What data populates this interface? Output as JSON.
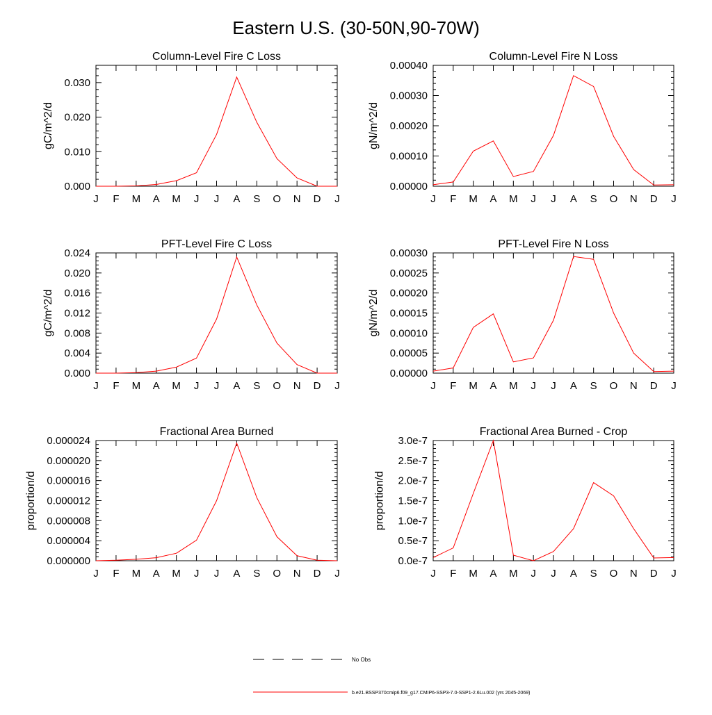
{
  "page_title": "Eastern U.S. (30-50N,90-70W)",
  "month_labels": [
    "J",
    "F",
    "M",
    "A",
    "M",
    "J",
    "J",
    "A",
    "S",
    "O",
    "N",
    "D",
    "J"
  ],
  "legend": {
    "obs_label": "No Obs",
    "obs_color": "#000000",
    "model_label": "b.e21.BSSP370cmip6.f09_g17.CMIP6-SSP3-7.0-SSP1-2.6Lu.002 (yrs 2045-2069)",
    "model_color": "#ff0000"
  },
  "chart_data": [
    {
      "type": "line",
      "title": "Column-Level Fire C Loss",
      "ylabel": "gC/m^2/d",
      "ylim": [
        0,
        0.035
      ],
      "yticks": [
        0,
        0.01,
        0.02,
        0.03
      ],
      "ytick_labels": [
        "0.000",
        "0.010",
        "0.020",
        "0.030"
      ],
      "x": [
        1,
        2,
        3,
        4,
        5,
        6,
        7,
        8,
        9,
        10,
        11,
        12,
        13
      ],
      "series": [
        {
          "color": "#ff0000",
          "values": [
            0.0,
            0.0,
            0.0001,
            0.0005,
            0.0016,
            0.0039,
            0.015,
            0.0316,
            0.0185,
            0.008,
            0.0024,
            0.0,
            0.0
          ]
        }
      ]
    },
    {
      "type": "line",
      "title": "Column-Level Fire N Loss",
      "ylabel": "gN/m^2/d",
      "ylim": [
        0,
        0.0004
      ],
      "yticks": [
        0,
        0.0001,
        0.0002,
        0.0003,
        0.0004
      ],
      "ytick_labels": [
        "0.00000",
        "0.00010",
        "0.00020",
        "0.00030",
        "0.00040"
      ],
      "x": [
        1,
        2,
        3,
        4,
        5,
        6,
        7,
        8,
        9,
        10,
        11,
        12,
        13
      ],
      "series": [
        {
          "color": "#ff0000",
          "values": [
            5e-06,
            1.4e-05,
            0.000116,
            0.00015,
            3.2e-05,
            4.9e-05,
            0.000168,
            0.000366,
            0.00033,
            0.000165,
            5.5e-05,
            4e-06,
            5e-06
          ]
        }
      ]
    },
    {
      "type": "line",
      "title": "PFT-Level Fire C Loss",
      "ylabel": "gC/m^2/d",
      "ylim": [
        0,
        0.024
      ],
      "yticks": [
        0,
        0.004,
        0.008,
        0.012,
        0.016,
        0.02,
        0.024
      ],
      "ytick_labels": [
        "0.000",
        "0.004",
        "0.008",
        "0.012",
        "0.016",
        "0.020",
        "0.024"
      ],
      "x": [
        1,
        2,
        3,
        4,
        5,
        6,
        7,
        8,
        9,
        10,
        11,
        12,
        13
      ],
      "series": [
        {
          "color": "#ff0000",
          "values": [
            0.0,
            0.0,
            0.0001,
            0.0004,
            0.0012,
            0.003,
            0.0108,
            0.0232,
            0.0136,
            0.006,
            0.0017,
            0.0,
            0.0
          ]
        }
      ]
    },
    {
      "type": "line",
      "title": "PFT-Level Fire N Loss",
      "ylabel": "gN/m^2/d",
      "ylim": [
        0,
        0.0003
      ],
      "yticks": [
        0,
        5e-05,
        0.0001,
        0.00015,
        0.0002,
        0.00025,
        0.0003
      ],
      "ytick_labels": [
        "0.00000",
        "0.00005",
        "0.00010",
        "0.00015",
        "0.00020",
        "0.00025",
        "0.00030"
      ],
      "x": [
        1,
        2,
        3,
        4,
        5,
        6,
        7,
        8,
        9,
        10,
        11,
        12,
        13
      ],
      "series": [
        {
          "color": "#ff0000",
          "values": [
            5e-06,
            1.3e-05,
            0.000114,
            0.000148,
            2.8e-05,
            3.8e-05,
            0.000132,
            0.000291,
            0.000284,
            0.00015,
            5e-05,
            4e-06,
            5e-06
          ]
        }
      ]
    },
    {
      "type": "line",
      "title": "Fractional Area Burned",
      "ylabel": "proportion/d",
      "ylim": [
        0,
        2.4e-05
      ],
      "yticks": [
        0,
        4e-06,
        8e-06,
        1.2e-05,
        1.6e-05,
        2e-05,
        2.4e-05
      ],
      "ytick_labels": [
        "0.000000",
        "0.000004",
        "0.000008",
        "0.000012",
        "0.000016",
        "0.000020",
        "0.000024"
      ],
      "x": [
        1,
        2,
        3,
        4,
        5,
        6,
        7,
        8,
        9,
        10,
        11,
        12,
        13
      ],
      "series": [
        {
          "color": "#ff0000",
          "values": [
            0.0,
            1e-07,
            3e-07,
            6e-07,
            1.5e-06,
            4.1e-06,
            1.2e-05,
            2.35e-05,
            1.26e-05,
            4.8e-06,
            1e-06,
            1e-07,
            0.0
          ]
        }
      ]
    },
    {
      "type": "line",
      "title": "Fractional Area Burned - Crop",
      "ylabel": "proportion/d",
      "ylim": [
        0,
        3e-07
      ],
      "yticks": [
        0,
        5e-08,
        1e-07,
        1.5e-07,
        2e-07,
        2.5e-07,
        3e-07
      ],
      "ytick_labels": [
        "0.0e-7",
        "0.5e-7",
        "1.0e-7",
        "1.5e-7",
        "2.0e-7",
        "2.5e-7",
        "3.0e-7"
      ],
      "x": [
        1,
        2,
        3,
        4,
        5,
        6,
        7,
        8,
        9,
        10,
        11,
        12,
        13
      ],
      "series": [
        {
          "color": "#ff0000",
          "values": [
            8e-09,
            3.2e-08,
            1.68e-07,
            3e-07,
            1.4e-08,
            0.0,
            2.3e-08,
            8e-08,
            1.95e-07,
            1.62e-07,
            8e-08,
            7e-09,
            8e-09
          ]
        }
      ]
    }
  ]
}
